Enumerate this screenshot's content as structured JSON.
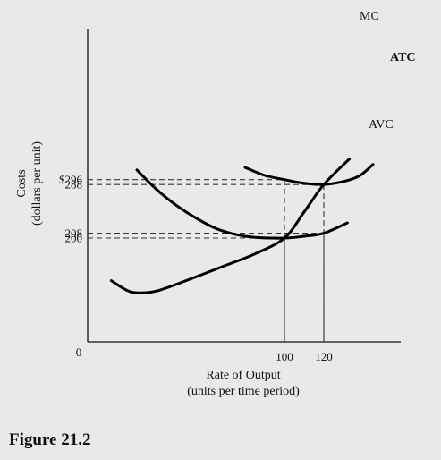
{
  "figure_caption": "Figure 21.2",
  "chart_data": {
    "type": "line",
    "title": "",
    "ylabel": "Costs",
    "ylabel_sub": "(dollars per unit)",
    "xlabel": "Rate of Output",
    "xlabel_sub": "(units per time period)",
    "origin_label": "0",
    "x_ticks": [
      {
        "value": 100,
        "label": "100"
      },
      {
        "value": 120,
        "label": "120"
      }
    ],
    "y_ticks": [
      {
        "value": 296,
        "label": "$296"
      },
      {
        "value": 288,
        "label": "288"
      },
      {
        "value": 208,
        "label": "208"
      },
      {
        "value": 200,
        "label": "200"
      }
    ],
    "guides": [
      {
        "x": 100,
        "y": 296
      },
      {
        "x": 120,
        "y": 288
      },
      {
        "x": 120,
        "y": 208
      },
      {
        "x": 100,
        "y": 200
      }
    ],
    "xlim": [
      0,
      145
    ],
    "ylim": [
      100,
      330
    ],
    "grid": false,
    "series": [
      {
        "name": "MC",
        "points": [
          [
            12,
            130
          ],
          [
            20,
            114
          ],
          [
            26,
            110
          ],
          [
            35,
            113
          ],
          [
            50,
            130
          ],
          [
            70,
            155
          ],
          [
            85,
            174
          ],
          [
            100,
            200
          ],
          [
            110,
            243
          ],
          [
            120,
            288
          ],
          [
            133,
            330
          ]
        ]
      },
      {
        "name": "ATC",
        "points": [
          [
            80,
            316
          ],
          [
            90,
            303
          ],
          [
            100,
            296
          ],
          [
            110,
            290
          ],
          [
            120,
            288
          ],
          [
            130,
            293
          ],
          [
            138,
            302
          ],
          [
            145,
            321
          ]
        ]
      },
      {
        "name": "AVC",
        "points": [
          [
            25,
            312
          ],
          [
            35,
            280
          ],
          [
            45,
            254
          ],
          [
            55,
            233
          ],
          [
            65,
            216
          ],
          [
            75,
            206
          ],
          [
            85,
            201
          ],
          [
            100,
            200
          ],
          [
            110,
            203
          ],
          [
            120,
            208
          ],
          [
            132,
            225
          ]
        ]
      }
    ]
  }
}
